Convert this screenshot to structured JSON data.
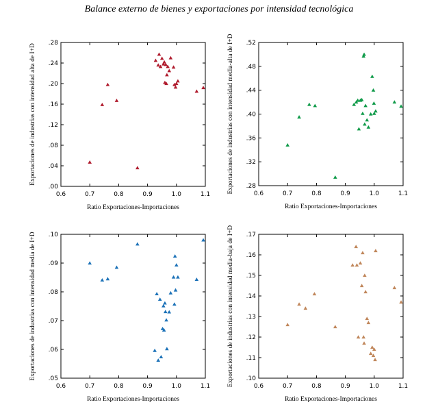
{
  "figure": {
    "title": "Balance externo de bienes y exportaciones por intensidad tecnológica"
  },
  "chart_data": [
    {
      "type": "scatter",
      "xlabel": "Ratio Exportaciones-Importaciones",
      "ylabel": "Exportaciones de industrias con intensidad alta de I+D",
      "xlim": [
        0.6,
        1.1
      ],
      "ylim": [
        0.0,
        0.28
      ],
      "xticks": [
        "0.6",
        "0.7",
        "0.8",
        "0.9",
        "1.0",
        "1.1"
      ],
      "yticks": [
        ".00",
        ".04",
        ".08",
        ".12",
        ".16",
        ".20",
        ".24",
        ".28"
      ],
      "color": "#b01c2e",
      "points": [
        [
          0.7,
          0.047
        ],
        [
          0.743,
          0.159
        ],
        [
          0.762,
          0.198
        ],
        [
          0.793,
          0.167
        ],
        [
          0.865,
          0.036
        ],
        [
          0.928,
          0.245
        ],
        [
          0.937,
          0.236
        ],
        [
          0.94,
          0.257
        ],
        [
          0.945,
          0.233
        ],
        [
          0.95,
          0.249
        ],
        [
          0.955,
          0.238
        ],
        [
          0.958,
          0.242
        ],
        [
          0.96,
          0.202
        ],
        [
          0.963,
          0.237
        ],
        [
          0.965,
          0.2
        ],
        [
          0.967,
          0.217
        ],
        [
          0.97,
          0.233
        ],
        [
          0.975,
          0.225
        ],
        [
          0.98,
          0.25
        ],
        [
          0.99,
          0.232
        ],
        [
          0.993,
          0.198
        ],
        [
          0.997,
          0.193
        ],
        [
          1.0,
          0.2
        ],
        [
          1.005,
          0.205
        ],
        [
          1.07,
          0.185
        ],
        [
          1.093,
          0.192
        ]
      ]
    },
    {
      "type": "scatter",
      "xlabel": "Ratio Exportaciones-Importaciones",
      "ylabel": "Exportaciones de industrias con intensidad media-alta de I+D",
      "xlim": [
        0.6,
        1.1
      ],
      "ylim": [
        0.28,
        0.52
      ],
      "xticks": [
        "0.6",
        "0.7",
        "0.8",
        "0.9",
        "1.0",
        "1.1"
      ],
      "yticks": [
        ".28",
        ".32",
        ".36",
        ".40",
        ".44",
        ".48",
        ".52"
      ],
      "color": "#0e9a48",
      "points": [
        [
          0.7,
          0.348
        ],
        [
          0.74,
          0.395
        ],
        [
          0.775,
          0.416
        ],
        [
          0.795,
          0.414
        ],
        [
          0.865,
          0.294
        ],
        [
          0.93,
          0.416
        ],
        [
          0.938,
          0.42
        ],
        [
          0.943,
          0.423
        ],
        [
          0.947,
          0.375
        ],
        [
          0.952,
          0.423
        ],
        [
          0.957,
          0.424
        ],
        [
          0.96,
          0.401
        ],
        [
          0.963,
          0.497
        ],
        [
          0.965,
          0.5
        ],
        [
          0.967,
          0.383
        ],
        [
          0.97,
          0.414
        ],
        [
          0.975,
          0.39
        ],
        [
          0.98,
          0.378
        ],
        [
          0.988,
          0.4
        ],
        [
          0.993,
          0.463
        ],
        [
          0.997,
          0.44
        ],
        [
          0.999,
          0.418
        ],
        [
          1.0,
          0.401
        ],
        [
          1.005,
          0.405
        ],
        [
          1.07,
          0.42
        ],
        [
          1.093,
          0.413
        ]
      ]
    },
    {
      "type": "scatter",
      "xlabel": "Ratio Exportaciones-Importaciones",
      "ylabel": "Exportaciones de industrias con intensidad media de I+D",
      "xlim": [
        0.6,
        1.1
      ],
      "ylim": [
        0.05,
        0.1
      ],
      "xticks": [
        "0.6",
        "0.7",
        "0.8",
        "0.9",
        "1.0",
        "1.1"
      ],
      "yticks": [
        ".05",
        ".06",
        ".07",
        ".08",
        ".09",
        ".10"
      ],
      "color": "#1c72b8",
      "points": [
        [
          0.7,
          0.09
        ],
        [
          0.743,
          0.0841
        ],
        [
          0.762,
          0.0845
        ],
        [
          0.793,
          0.0885
        ],
        [
          0.865,
          0.0966
        ],
        [
          0.925,
          0.0596
        ],
        [
          0.932,
          0.0793
        ],
        [
          0.937,
          0.0562
        ],
        [
          0.943,
          0.0774
        ],
        [
          0.947,
          0.0574
        ],
        [
          0.952,
          0.0672
        ],
        [
          0.955,
          0.0751
        ],
        [
          0.957,
          0.0667
        ],
        [
          0.96,
          0.0761
        ],
        [
          0.962,
          0.0731
        ],
        [
          0.965,
          0.0702
        ],
        [
          0.967,
          0.0602
        ],
        [
          0.975,
          0.073
        ],
        [
          0.98,
          0.0796
        ],
        [
          0.99,
          0.0851
        ],
        [
          0.993,
          0.0757
        ],
        [
          0.995,
          0.0924
        ],
        [
          0.997,
          0.0806
        ],
        [
          1.0,
          0.0893
        ],
        [
          1.005,
          0.0851
        ],
        [
          1.07,
          0.0843
        ],
        [
          1.093,
          0.098
        ]
      ]
    },
    {
      "type": "scatter",
      "xlabel": "Ratio Exportaciones-Importaciones",
      "ylabel": "Exportaciones de industrias con intensidad media-baja de I+D",
      "xlim": [
        0.6,
        1.1
      ],
      "ylim": [
        0.1,
        0.17
      ],
      "xticks": [
        "0.6",
        "0.7",
        "0.8",
        "0.9",
        "1.0",
        "1.1"
      ],
      "yticks": [
        ".10",
        ".11",
        ".12",
        ".13",
        ".14",
        ".15",
        ".16",
        ".17"
      ],
      "color": "#c0865a",
      "points": [
        [
          0.7,
          0.126
        ],
        [
          0.74,
          0.136
        ],
        [
          0.762,
          0.134
        ],
        [
          0.793,
          0.141
        ],
        [
          0.865,
          0.125
        ],
        [
          0.925,
          0.155
        ],
        [
          0.937,
          0.164
        ],
        [
          0.94,
          0.155
        ],
        [
          0.945,
          0.12
        ],
        [
          0.952,
          0.156
        ],
        [
          0.957,
          0.145
        ],
        [
          0.96,
          0.161
        ],
        [
          0.963,
          0.12
        ],
        [
          0.965,
          0.117
        ],
        [
          0.967,
          0.15
        ],
        [
          0.97,
          0.142
        ],
        [
          0.975,
          0.129
        ],
        [
          0.98,
          0.127
        ],
        [
          0.988,
          0.112
        ],
        [
          0.993,
          0.115
        ],
        [
          0.997,
          0.111
        ],
        [
          1.0,
          0.114
        ],
        [
          1.003,
          0.109
        ],
        [
          1.005,
          0.162
        ],
        [
          1.07,
          0.144
        ],
        [
          1.093,
          0.137
        ]
      ]
    }
  ]
}
